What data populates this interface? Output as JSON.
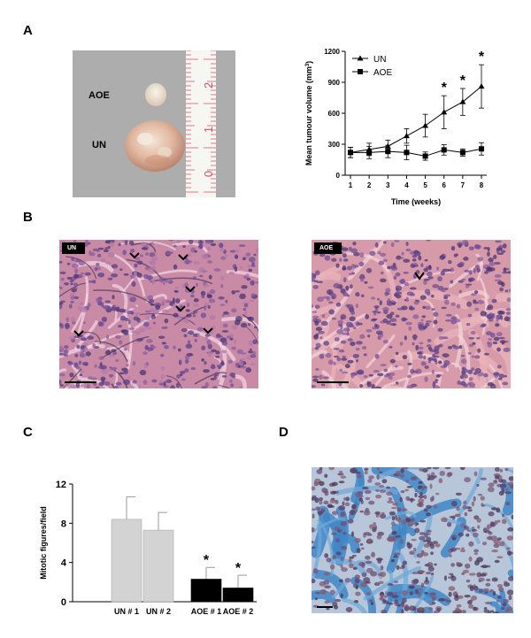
{
  "panels": {
    "a": {
      "letter": "A",
      "photo_labels": {
        "aoe": "AOE",
        "un": "UN"
      },
      "ruler_numbers": [
        "0",
        "1",
        "2"
      ]
    },
    "b": {
      "letter": "B",
      "left_tag": "UN",
      "right_tag": "AOE"
    },
    "c": {
      "letter": "C"
    },
    "d": {
      "letter": "D"
    }
  },
  "chart_data": [
    {
      "type": "line",
      "x": [
        1,
        2,
        3,
        4,
        5,
        6,
        7,
        8
      ],
      "xlabel": "Time (weeks)",
      "ylabel": "Mean tumour volume (mm",
      "ylabel_sup": "3",
      "ylabel_close": ")",
      "ylim": [
        0,
        1200
      ],
      "yticks": [
        0,
        300,
        600,
        900,
        1200
      ],
      "xticks": [
        "1",
        "2",
        "3",
        "4",
        "5",
        "6",
        "7",
        "8"
      ],
      "legend_position": "top-left",
      "series": [
        {
          "name": "UN",
          "marker": "triangle",
          "values": [
            220,
            250,
            280,
            380,
            480,
            610,
            710,
            860
          ],
          "errors": [
            50,
            60,
            60,
            70,
            110,
            160,
            130,
            210
          ]
        },
        {
          "name": "AOE",
          "marker": "square",
          "values": [
            220,
            220,
            230,
            220,
            185,
            245,
            220,
            255
          ],
          "errors": [
            50,
            60,
            60,
            70,
            40,
            50,
            35,
            60
          ]
        }
      ],
      "significance": {
        "marker": "*",
        "at_x": [
          6,
          7,
          8
        ]
      }
    },
    {
      "type": "bar",
      "categories": [
        "UN # 1",
        "UN # 2",
        "AOE # 1",
        "AOE # 2"
      ],
      "values": [
        8.4,
        7.3,
        2.3,
        1.4
      ],
      "errors": [
        2.3,
        1.8,
        1.2,
        1.3
      ],
      "colors": [
        "#d3d3d3",
        "#d3d3d3",
        "#000000",
        "#000000"
      ],
      "ylabel": "Mitotic figures/field",
      "ylim": [
        0,
        12
      ],
      "yticks": [
        0,
        4,
        8,
        12
      ],
      "significance": {
        "marker": "*",
        "at": [
          "AOE # 1",
          "AOE # 2"
        ]
      }
    }
  ]
}
